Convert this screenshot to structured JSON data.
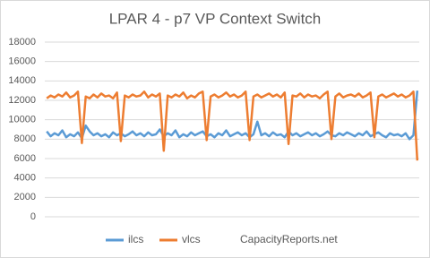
{
  "chart_data": {
    "type": "line",
    "title": "LPAR 4 - p7 VP Context Switch",
    "credit": "CapacityReports.net",
    "categories": [
      null,
      null,
      null,
      null,
      null,
      null,
      null,
      null,
      null,
      null,
      null,
      null,
      null,
      null,
      null,
      null,
      null,
      null,
      null,
      null,
      null,
      null,
      null,
      null,
      null,
      null,
      null,
      null,
      null,
      null,
      null,
      null,
      null,
      null,
      null,
      null,
      null,
      null,
      null,
      null,
      null,
      null,
      null,
      null,
      null,
      null,
      null,
      null,
      null,
      null,
      null,
      null,
      null,
      null,
      null,
      null,
      null,
      null,
      null,
      null,
      null,
      null,
      null,
      null,
      null,
      null,
      null,
      null,
      null,
      null,
      null,
      null,
      null,
      null,
      null,
      null,
      null,
      null,
      null,
      null,
      null,
      null,
      null,
      null,
      null,
      null,
      null,
      null,
      null,
      null,
      null,
      null,
      null,
      null,
      null,
      null
    ],
    "series": [
      {
        "name": "ilcs",
        "color": "#5b9bd5",
        "values": [
          8800,
          8300,
          8600,
          8400,
          8900,
          8200,
          8500,
          8300,
          8700,
          8100,
          9400,
          8800,
          8400,
          8600,
          8300,
          8500,
          8200,
          8700,
          8400,
          8600,
          8300,
          8500,
          8800,
          8400,
          8600,
          8300,
          8700,
          8400,
          8500,
          9000,
          8300,
          8600,
          8400,
          8900,
          8200,
          8500,
          8300,
          8700,
          8400,
          8600,
          8800,
          8300,
          8500,
          8200,
          8600,
          8400,
          8900,
          8300,
          8500,
          8700,
          8400,
          8600,
          8200,
          8500,
          9800,
          8400,
          8600,
          8300,
          8700,
          8400,
          8500,
          8200,
          8800,
          8400,
          8600,
          8300,
          8500,
          8700,
          8400,
          8600,
          8300,
          8500,
          8800,
          8400,
          8300,
          8600,
          8400,
          8700,
          8500,
          8300,
          8600,
          8400,
          8800,
          8300,
          8500,
          8700,
          8400,
          8200,
          8600,
          8400,
          8500,
          8300,
          8600,
          8000,
          8400,
          13000
        ]
      },
      {
        "name": "vlcs",
        "color": "#ed7d31",
        "values": [
          12200,
          12500,
          12300,
          12600,
          12400,
          12800,
          12300,
          12500,
          12900,
          7600,
          12400,
          12200,
          12600,
          12300,
          12700,
          12400,
          12500,
          12200,
          12800,
          7800,
          12500,
          12300,
          12600,
          12400,
          12500,
          12900,
          12300,
          12600,
          12400,
          12700,
          6800,
          12500,
          12300,
          12600,
          12400,
          12800,
          12200,
          12500,
          12300,
          12700,
          12900,
          7900,
          12400,
          12600,
          12300,
          12500,
          12800,
          12400,
          12600,
          12300,
          12500,
          12900,
          7900,
          12400,
          12600,
          12300,
          12500,
          12700,
          12400,
          12600,
          12300,
          12800,
          7500,
          12500,
          12400,
          12700,
          12300,
          12600,
          12400,
          12500,
          12200,
          12600,
          12900,
          8000,
          12400,
          12700,
          12300,
          12500,
          12600,
          12400,
          12700,
          12300,
          12500,
          12800,
          8200,
          12400,
          12600,
          12300,
          12500,
          12700,
          12400,
          12600,
          12300,
          12500,
          12900,
          5800
        ]
      }
    ],
    "ylim": [
      0,
      18000
    ],
    "yticks": [
      0,
      2000,
      4000,
      6000,
      8000,
      10000,
      12000,
      14000,
      16000,
      18000
    ],
    "grid": true
  }
}
